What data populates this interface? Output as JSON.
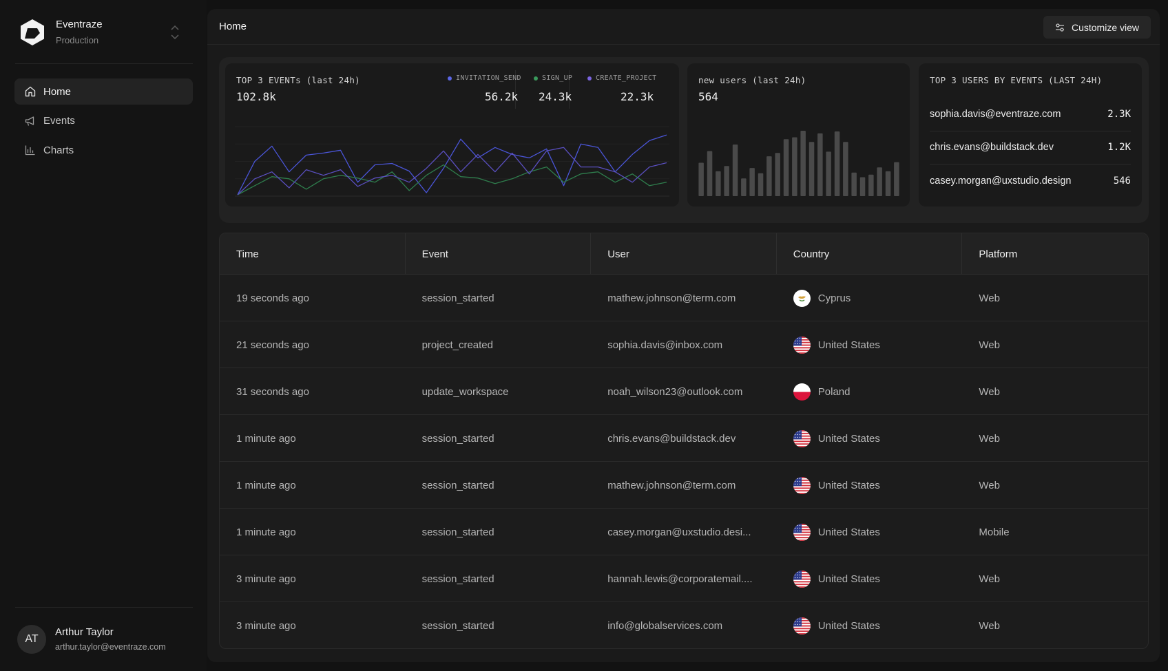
{
  "brand": {
    "name": "Eventraze",
    "environment": "Production"
  },
  "nav": [
    {
      "label": "Home",
      "icon": "home-icon",
      "active": true
    },
    {
      "label": "Events",
      "icon": "megaphone-icon",
      "active": false
    },
    {
      "label": "Charts",
      "icon": "bar-chart-icon",
      "active": false
    }
  ],
  "user": {
    "initials": "AT",
    "name": "Arthur Taylor",
    "email": "arthur.taylor@eventraze.com"
  },
  "header": {
    "title": "Home",
    "customize_label": "Customize view"
  },
  "cards": {
    "top_events": {
      "title": "TOP 3 EVENTs (last 24h)",
      "total": "102.8k",
      "legend": [
        {
          "name": "INVITATION_SEND",
          "value": "56.2k",
          "color": "#5b66e6"
        },
        {
          "name": "SIGN_UP",
          "value": "24.3k",
          "color": "#3a9a5c"
        },
        {
          "name": "CREATE_PROJECT",
          "value": "22.3k",
          "color": "#7a64e0"
        }
      ]
    },
    "new_users": {
      "title": "new users (last 24h)",
      "total": "564"
    },
    "top_users": {
      "title": "TOP 3 USERS BY EVENTS (LAST 24H)",
      "rows": [
        {
          "email": "sophia.davis@eventraze.com",
          "count": "2.3K"
        },
        {
          "email": "chris.evans@buildstack.dev",
          "count": "1.2K"
        },
        {
          "email": "casey.morgan@uxstudio.design",
          "count": "546"
        }
      ]
    }
  },
  "chart_data": [
    {
      "type": "line",
      "title": "TOP 3 EVENTs (last 24h)",
      "x": [
        0,
        1,
        2,
        3,
        4,
        5,
        6,
        7,
        8,
        9,
        10,
        11,
        12,
        13,
        14,
        15,
        16,
        17,
        18,
        19,
        20,
        21,
        22,
        23,
        24,
        25
      ],
      "ylim": [
        0,
        100
      ],
      "grid": true,
      "series": [
        {
          "name": "INVITATION_SEND",
          "color": "#4a55d8",
          "values": [
            2,
            50,
            72,
            35,
            59,
            62,
            66,
            20,
            45,
            47,
            36,
            5,
            40,
            82,
            55,
            70,
            60,
            55,
            68,
            15,
            75,
            70,
            35,
            60,
            80,
            88
          ]
        },
        {
          "name": "SIGN_UP",
          "color": "#2f7e4d",
          "values": [
            2,
            15,
            28,
            25,
            10,
            25,
            30,
            26,
            20,
            35,
            8,
            30,
            45,
            28,
            26,
            18,
            25,
            35,
            42,
            20,
            32,
            35,
            20,
            32,
            15,
            20
          ]
        },
        {
          "name": "CREATE_PROJECT",
          "color": "#5a4fc0",
          "values": [
            2,
            25,
            35,
            12,
            38,
            30,
            38,
            14,
            26,
            30,
            20,
            40,
            65,
            35,
            60,
            35,
            62,
            32,
            65,
            70,
            42,
            42,
            35,
            20,
            42,
            48
          ]
        }
      ]
    },
    {
      "type": "bar",
      "title": "new users (last 24h)",
      "ylim": [
        0,
        100
      ],
      "values": [
        51,
        69,
        38,
        46,
        79,
        27,
        43,
        35,
        61,
        66,
        87,
        90,
        100,
        83,
        96,
        68,
        99,
        83,
        36,
        29,
        33,
        44,
        38,
        52
      ],
      "color": "#4a4a4a"
    }
  ],
  "table": {
    "columns": [
      "Time",
      "Event",
      "User",
      "Country",
      "Platform"
    ],
    "rows": [
      {
        "time": "19 seconds ago",
        "event": "session_started",
        "user": "mathew.johnson@term.com",
        "country": "Cyprus",
        "flag": "cy",
        "platform": "Web"
      },
      {
        "time": "21 seconds ago",
        "event": "project_created",
        "user": "sophia.davis@inbox.com",
        "country": "United States",
        "flag": "us",
        "platform": "Web"
      },
      {
        "time": "31 seconds ago",
        "event": "update_workspace",
        "user": "noah_wilson23@outlook.com",
        "country": "Poland",
        "flag": "pl",
        "platform": "Web"
      },
      {
        "time": "1 minute ago",
        "event": "session_started",
        "user": "chris.evans@buildstack.dev",
        "country": "United States",
        "flag": "us",
        "platform": "Web"
      },
      {
        "time": "1 minute ago",
        "event": "session_started",
        "user": "mathew.johnson@term.com",
        "country": "United States",
        "flag": "us",
        "platform": "Web"
      },
      {
        "time": "1 minute ago",
        "event": "session_started",
        "user": "casey.morgan@uxstudio.desi...",
        "country": "United States",
        "flag": "us",
        "platform": "Mobile"
      },
      {
        "time": "3 minute ago",
        "event": "session_started",
        "user": "hannah.lewis@corporatemail....",
        "country": "United States",
        "flag": "us",
        "platform": "Web"
      },
      {
        "time": "3 minute ago",
        "event": "session_started",
        "user": "info@globalservices.com",
        "country": "United States",
        "flag": "us",
        "platform": "Web"
      }
    ]
  }
}
